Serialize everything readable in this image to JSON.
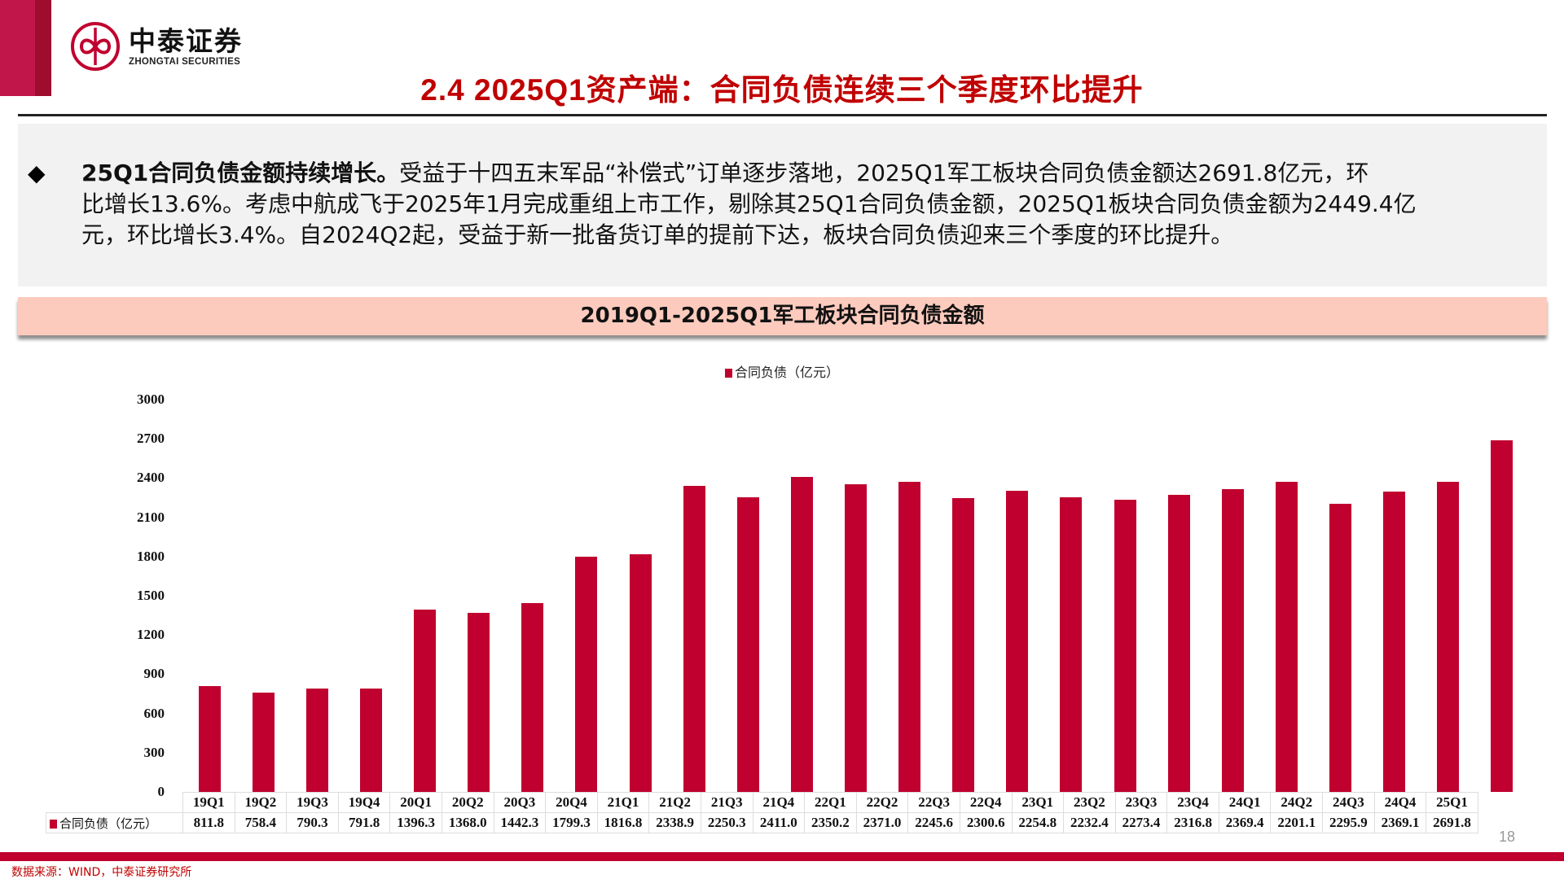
{
  "header": {
    "logo_cn": "中泰证券",
    "logo_en": "ZHONGTAI SECURITIES",
    "title": "2.4 2025Q1资产端：合同负债连续三个季度环比提升"
  },
  "summary": {
    "bullet": "◆",
    "lead": "25Q1合同负债金额持续增长。",
    "line1_rest": "受益于十四五末军品“补偿式”订单逐步落地，2025Q1军工板块合同负债金额达2691.8亿元，环",
    "line2": "比增长13.6%。考虑中航成飞于2025年1月完成重组上市工作，剔除其25Q1合同负债金额，2025Q1板块合同负债金额为2449.4亿",
    "line3": "元，环比增长3.4%。自2024Q2起，受益于新一批备货订单的提前下达，板块合同负债迎来三个季度的环比提升。"
  },
  "chart_title": "2019Q1-2025Q1军工板块合同负债金额",
  "colors": {
    "bar": "#C0002F",
    "title_red": "#C00000",
    "title_bar_bg": "#FCCBBE",
    "summary_bg": "#F2F2F2"
  },
  "chart_data": {
    "type": "bar",
    "title": "2019Q1-2025Q1军工板块合同负债金额",
    "xlabel": "",
    "ylabel": "",
    "ylim": [
      0,
      3000
    ],
    "yticks": [
      0,
      300,
      600,
      900,
      1200,
      1500,
      1800,
      2100,
      2400,
      2700,
      3000
    ],
    "grid": false,
    "legend_position": "top",
    "categories": [
      "19Q1",
      "19Q2",
      "19Q3",
      "19Q4",
      "20Q1",
      "20Q2",
      "20Q3",
      "20Q4",
      "21Q1",
      "21Q2",
      "21Q3",
      "21Q4",
      "22Q1",
      "22Q2",
      "22Q3",
      "22Q4",
      "23Q1",
      "23Q2",
      "23Q3",
      "23Q4",
      "24Q1",
      "24Q2",
      "24Q3",
      "24Q4",
      "25Q1"
    ],
    "series": [
      {
        "name": "合同负债（亿元）",
        "color": "#C0002F",
        "values": [
          811.8,
          758.4,
          790.3,
          791.8,
          1396.3,
          1368.0,
          1442.3,
          1799.3,
          1816.8,
          2338.9,
          2250.3,
          2411.0,
          2350.2,
          2371.0,
          2245.6,
          2300.6,
          2254.8,
          2232.4,
          2273.4,
          2316.8,
          2369.4,
          2201.1,
          2295.9,
          2369.1,
          2691.8
        ]
      }
    ],
    "data_table": {
      "label": "合同负债（亿元）",
      "values": [
        "811.8",
        "758.4",
        "790.3",
        "791.8",
        "1396.3",
        "1368.0",
        "1442.3",
        "1799.3",
        "1816.8",
        "2338.9",
        "2250.3",
        "2411.0",
        "2350.2",
        "2371.0",
        "2245.6",
        "2300.6",
        "2254.8",
        "2232.4",
        "2273.4",
        "2316.8",
        "2369.4",
        "2201.1",
        "2295.9",
        "2369.1",
        "2691.8"
      ]
    }
  },
  "footer": {
    "page_number": "18",
    "source": "数据来源：WIND，中泰证券研究所"
  }
}
